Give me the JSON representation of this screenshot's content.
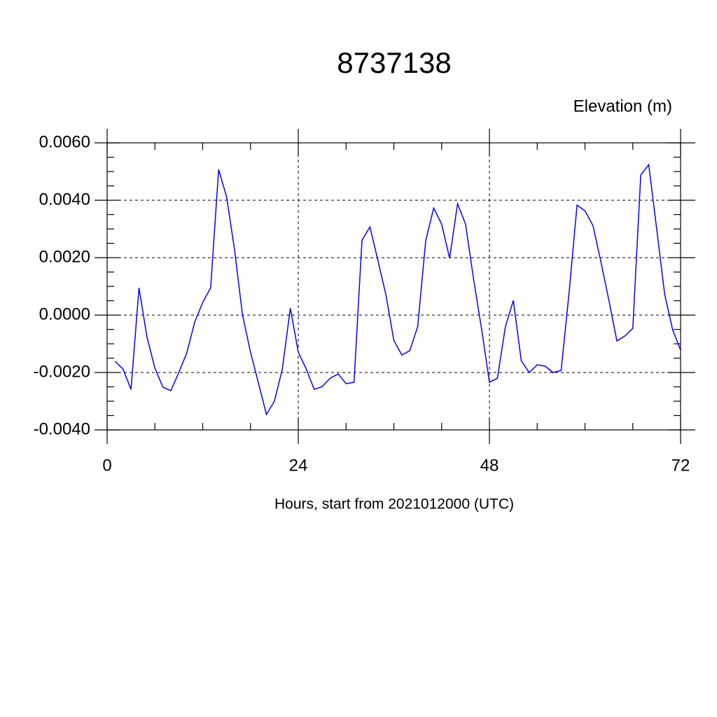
{
  "chart_data": {
    "type": "line",
    "title": "8737138",
    "subtitle": "Elevation (m)",
    "x_label": "Hours, start from 2021012000 (UTC)",
    "x": [
      1,
      2,
      3,
      4,
      5,
      6,
      7,
      8,
      9,
      10,
      11,
      12,
      13,
      14,
      15,
      16,
      17,
      18,
      19,
      20,
      21,
      22,
      23,
      24,
      25,
      26,
      27,
      28,
      29,
      30,
      31,
      32,
      33,
      34,
      35,
      36,
      37,
      38,
      39,
      40,
      41,
      42,
      43,
      44,
      45,
      46,
      47,
      48,
      49,
      50,
      51,
      52,
      53,
      54,
      55,
      56,
      57,
      58,
      59,
      60,
      61,
      62,
      63,
      64,
      65,
      66,
      67,
      68,
      69,
      70,
      71,
      72
    ],
    "series": [
      {
        "color": "#0000ff",
        "values": [
          -0.00161,
          -0.00188,
          -0.00259,
          0.00095,
          -0.00076,
          -0.00185,
          -0.00251,
          -0.00263,
          -0.002,
          -0.00132,
          -0.00024,
          0.00044,
          0.00095,
          0.00507,
          0.00412,
          0.00227,
          0.0,
          -0.00129,
          -0.00237,
          -0.00346,
          -0.003,
          -0.00188,
          0.00024,
          -0.00129,
          -0.00188,
          -0.00259,
          -0.00249,
          -0.0022,
          -0.00205,
          -0.00239,
          -0.00234,
          0.00261,
          0.00307,
          0.0019,
          0.00071,
          -0.00088,
          -0.00139,
          -0.00124,
          -0.00039,
          0.00259,
          0.00373,
          0.00317,
          0.00198,
          0.00388,
          0.00317,
          0.00127,
          -0.00046,
          -0.00234,
          -0.0022,
          -0.00041,
          0.00051,
          -0.00159,
          -0.002,
          -0.00173,
          -0.00178,
          -0.002,
          -0.00193,
          0.00078,
          0.00383,
          0.00363,
          0.00312,
          0.00185,
          0.00051,
          -0.0009,
          -0.00073,
          -0.00046,
          0.00488,
          0.00524,
          0.003,
          0.00073,
          -0.00051,
          -0.00122
        ]
      }
    ],
    "xlim": [
      0,
      72
    ],
    "xticks": [
      0,
      24,
      48,
      72
    ],
    "ylim": [
      -0.004,
      0.006
    ],
    "yticks": [
      {
        "value": -0.004,
        "label": "-0.0040"
      },
      {
        "value": -0.002,
        "label": "-0.0020"
      },
      {
        "value": 0,
        "label": "0.0000"
      },
      {
        "value": 0.002,
        "label": "0.0020"
      },
      {
        "value": 0.004,
        "label": "0.0040"
      },
      {
        "value": 0.006,
        "label": "0.0060"
      }
    ],
    "grid": true
  }
}
